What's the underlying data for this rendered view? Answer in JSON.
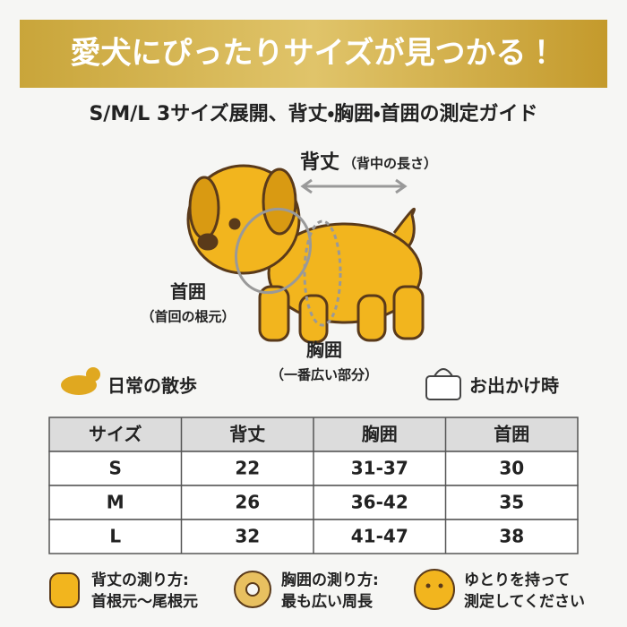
{
  "banner": {
    "title": "愛犬にぴったりサイズが見つかる！"
  },
  "subtitle": "S/M/L 3サイズ展開、背丈・胸囲・首囲の測定ガイド",
  "diagram": {
    "back": {
      "label": "背丈",
      "note": "（背中の長さ）"
    },
    "neck": {
      "label": "首囲",
      "note": "（首回の根元）"
    },
    "chest": {
      "label": "胸囲",
      "note": "（一番広い部分）"
    }
  },
  "scenes": [
    "日常の散歩",
    "お出かけ時"
  ],
  "table": {
    "header": [
      "サイズ",
      "背丈",
      "胸囲",
      "首囲"
    ],
    "rows": [
      [
        "S",
        22,
        "31-37",
        30
      ],
      [
        "M",
        26,
        "36-42",
        35
      ],
      [
        "L",
        32,
        "41-47",
        38
      ]
    ]
  },
  "tips": [
    [
      "背丈の測り方:",
      "首根元〜尾根元"
    ],
    [
      "胸囲の測り方:",
      "最も広い周長"
    ],
    [
      "ゆとりを持って",
      "測定してください"
    ]
  ]
}
